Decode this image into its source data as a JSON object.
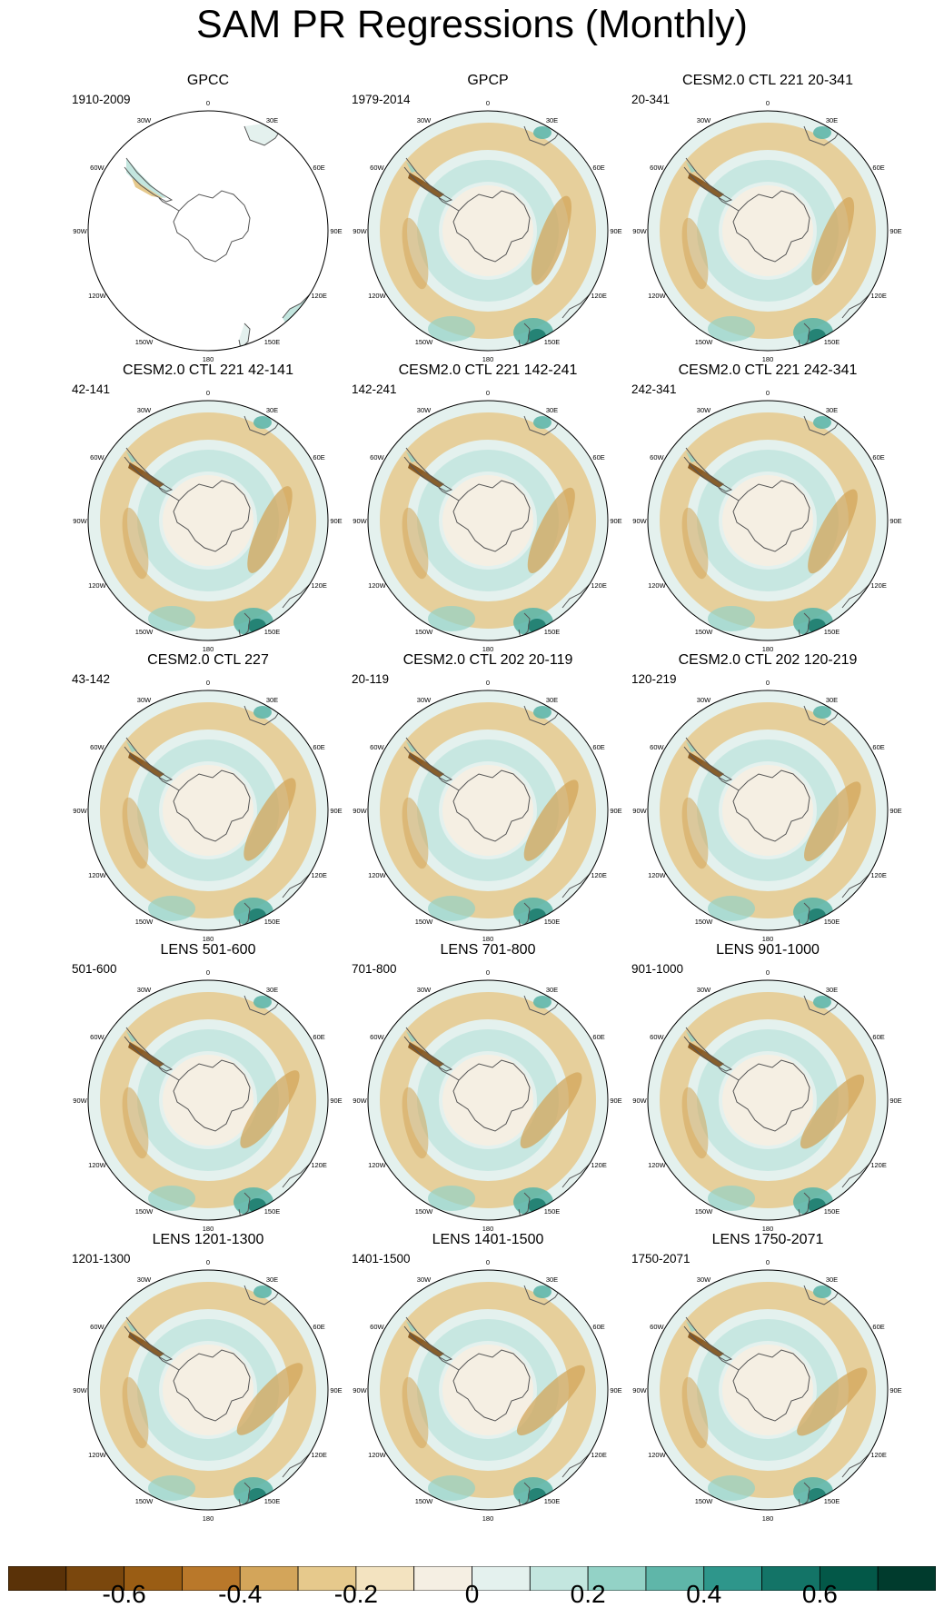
{
  "title": "SAM PR Regressions (Monthly)",
  "lon_labels": [
    "0",
    "30E",
    "60E",
    "90E",
    "120E",
    "150E",
    "180",
    "150W",
    "120W",
    "90W",
    "60W",
    "30W"
  ],
  "panels": [
    {
      "title": "GPCC",
      "period": "1910-2009",
      "coverage": "land-only"
    },
    {
      "title": "GPCP",
      "period": "1979-2014",
      "coverage": "full"
    },
    {
      "title": "CESM2.0 CTL 221 20-341",
      "period": "20-341",
      "coverage": "full"
    },
    {
      "title": "CESM2.0 CTL 221 42-141",
      "period": "42-141",
      "coverage": "full"
    },
    {
      "title": "CESM2.0 CTL 221 142-241",
      "period": "142-241",
      "coverage": "full"
    },
    {
      "title": "CESM2.0 CTL 221 242-341",
      "period": "242-341",
      "coverage": "full"
    },
    {
      "title": "CESM2.0 CTL 227",
      "period": "43-142",
      "coverage": "full"
    },
    {
      "title": "CESM2.0 CTL 202 20-119",
      "period": "20-119",
      "coverage": "full"
    },
    {
      "title": "CESM2.0 CTL 202 120-219",
      "period": "120-219",
      "coverage": "full"
    },
    {
      "title": "LENS 501-600",
      "period": "501-600",
      "coverage": "full"
    },
    {
      "title": "LENS 701-800",
      "period": "701-800",
      "coverage": "full"
    },
    {
      "title": "LENS 901-1000",
      "period": "901-1000",
      "coverage": "full"
    },
    {
      "title": "LENS 1201-1300",
      "period": "1201-1300",
      "coverage": "full"
    },
    {
      "title": "LENS 1401-1500",
      "period": "1401-1500",
      "coverage": "full"
    },
    {
      "title": "LENS 1750-2071",
      "period": "1750-2071",
      "coverage": "full"
    }
  ],
  "colorbar": {
    "colors": [
      "#5a3208",
      "#7a470d",
      "#9a5d14",
      "#b9782a",
      "#d3a55a",
      "#e6c98c",
      "#f3e3c0",
      "#f5efe3",
      "#e4f1ee",
      "#c3e6df",
      "#93d2c6",
      "#5fb6a9",
      "#2e968b",
      "#137467",
      "#035848",
      "#003b2d"
    ],
    "tick_labels": [
      "-0.6",
      "-0.4",
      "-0.2",
      "0",
      "0.2",
      "0.4",
      "0.6"
    ]
  }
}
